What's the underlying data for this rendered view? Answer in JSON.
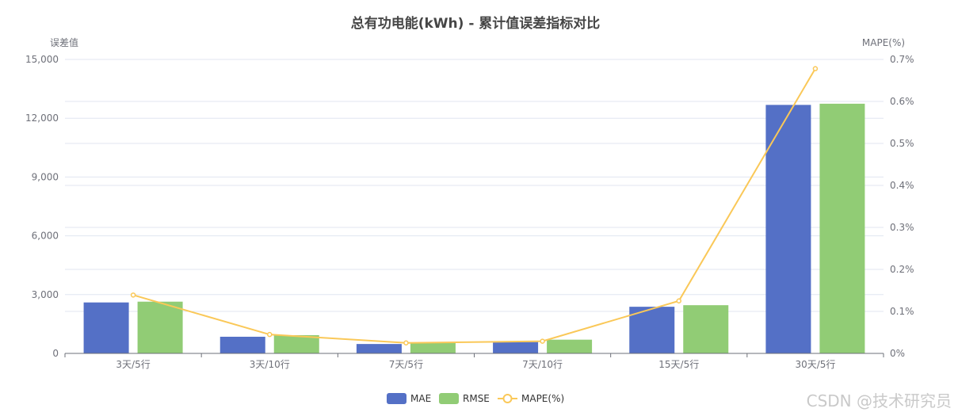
{
  "chart_data": {
    "type": "bar",
    "title": "总有功电能(kWh) - 累计值误差指标对比",
    "ylabel_left": "误差值",
    "ylabel_right": "MAPE(%)",
    "ylim_left": [
      0,
      15000
    ],
    "ylim_right": [
      0,
      0.7
    ],
    "yticks_left": [
      "0",
      "3,000",
      "6,000",
      "9,000",
      "12,000",
      "15,000"
    ],
    "yticks_right": [
      "0%",
      "0.1%",
      "0.2%",
      "0.3%",
      "0.4%",
      "0.5%",
      "0.6%",
      "0.7%"
    ],
    "categories": [
      "3天/5行",
      "3天/10行",
      "7天/5行",
      "7天/10行",
      "15天/5行",
      "30天/5行"
    ],
    "series": [
      {
        "name": "MAE",
        "type": "bar",
        "axis": "left",
        "color": "#5470c6",
        "values": [
          2600,
          850,
          480,
          580,
          2380,
          12680
        ]
      },
      {
        "name": "RMSE",
        "type": "bar",
        "axis": "left",
        "color": "#91cc75",
        "values": [
          2640,
          930,
          560,
          700,
          2460,
          12740
        ]
      },
      {
        "name": "MAPE(%)",
        "type": "line",
        "axis": "right",
        "color": "#fac858",
        "values": [
          0.139,
          0.045,
          0.025,
          0.029,
          0.125,
          0.678
        ]
      }
    ],
    "legend_position": "bottom-center",
    "grid": true
  },
  "watermark": "CSDN @技术研究员"
}
